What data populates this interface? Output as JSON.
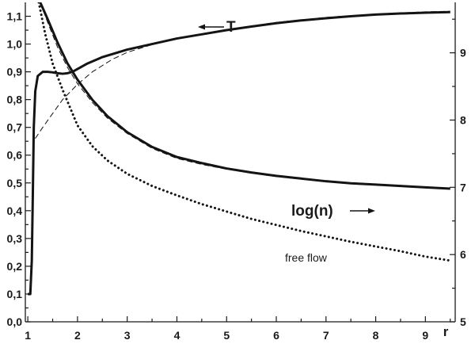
{
  "chart_data": {
    "type": "line",
    "x_axis": {
      "label": "r",
      "range": [
        0.95,
        9.6
      ],
      "ticks": [
        1,
        2,
        3,
        4,
        5,
        6,
        7,
        8,
        9
      ],
      "tick_labels": [
        "1",
        "2",
        "3",
        "4",
        "5",
        "6",
        "7",
        "8",
        "9"
      ]
    },
    "y_left_axis": {
      "range": [
        0.0,
        1.15
      ],
      "ticks": [
        0.0,
        0.1,
        0.2,
        0.3,
        0.4,
        0.5,
        0.6,
        0.7,
        0.8,
        0.9,
        1.0,
        1.1
      ],
      "tick_labels": [
        "0,0",
        "0,1",
        "0,2",
        "0,3",
        "0,4",
        "0,5",
        "0,6",
        "0,7",
        "0,8",
        "0,9",
        "1,0",
        "1,1"
      ]
    },
    "y_right_axis": {
      "range": [
        5.0,
        9.75
      ],
      "ticks": [
        5,
        6,
        7,
        8,
        9
      ],
      "tick_labels": [
        "5",
        "6",
        "7",
        "8",
        "9"
      ]
    },
    "annotations": [
      {
        "id": "T",
        "text": "T",
        "arrow": "left"
      },
      {
        "id": "logn",
        "text": "log(n)",
        "arrow": "right"
      },
      {
        "id": "freeflow",
        "text": "free flow"
      }
    ],
    "series": [
      {
        "id": "T_solid",
        "axis": "left",
        "style": "solid",
        "x": [
          1.0,
          1.05,
          1.08,
          1.1,
          1.12,
          1.15,
          1.2,
          1.3,
          1.4,
          1.5,
          1.6,
          1.7,
          1.8,
          1.9,
          2.0,
          2.2,
          2.5,
          3.0,
          3.5,
          4.0,
          4.5,
          5.0,
          5.5,
          6.0,
          6.5,
          7.0,
          7.5,
          8.0,
          8.5,
          9.0,
          9.5
        ],
        "y": [
          0.1,
          0.1,
          0.22,
          0.45,
          0.7,
          0.83,
          0.885,
          0.9,
          0.9,
          0.898,
          0.895,
          0.893,
          0.895,
          0.9,
          0.91,
          0.93,
          0.953,
          0.98,
          1.0,
          1.02,
          1.035,
          1.05,
          1.063,
          1.075,
          1.085,
          1.093,
          1.1,
          1.106,
          1.11,
          1.113,
          1.115
        ]
      },
      {
        "id": "T_dashed",
        "axis": "left",
        "style": "dashed",
        "x": [
          1.15,
          1.3,
          1.5,
          1.7,
          2.0,
          2.3,
          2.7,
          3.0,
          3.5,
          4.0,
          5.0,
          6.0,
          7.0,
          8.0,
          9.0,
          9.5
        ],
        "y": [
          0.66,
          0.7,
          0.75,
          0.8,
          0.855,
          0.9,
          0.945,
          0.97,
          0.998,
          1.02,
          1.052,
          1.078,
          1.096,
          1.108,
          1.116,
          1.118
        ]
      },
      {
        "id": "logn_solid",
        "axis": "right",
        "style": "solid",
        "x": [
          1.25,
          1.4,
          1.6,
          1.8,
          2.0,
          2.3,
          2.6,
          3.0,
          3.5,
          4.0,
          4.5,
          5.0,
          5.5,
          6.0,
          6.5,
          7.0,
          7.5,
          8.0,
          8.5,
          9.0,
          9.5
        ],
        "y": [
          9.75,
          9.5,
          9.15,
          8.84,
          8.6,
          8.3,
          8.06,
          7.82,
          7.6,
          7.45,
          7.36,
          7.28,
          7.22,
          7.17,
          7.13,
          7.09,
          7.06,
          7.04,
          7.02,
          7.0,
          6.98
        ]
      },
      {
        "id": "logn_dashed",
        "axis": "right",
        "style": "dashed",
        "x": [
          1.25,
          1.4,
          1.6,
          1.8,
          2.0,
          2.3,
          2.6,
          3.0,
          3.5,
          4.0,
          4.5,
          5.0,
          5.5,
          6.0,
          6.5,
          7.0,
          7.5,
          8.0,
          8.5,
          9.0,
          9.5
        ],
        "y": [
          9.75,
          9.45,
          9.08,
          8.78,
          8.54,
          8.26,
          8.03,
          7.8,
          7.58,
          7.43,
          7.34,
          7.27,
          7.21,
          7.16,
          7.12,
          7.09,
          7.06,
          7.04,
          7.02,
          7.0,
          6.99
        ]
      },
      {
        "id": "freeflow",
        "axis": "right",
        "style": "dotted",
        "x": [
          1.22,
          1.35,
          1.5,
          1.7,
          2.0,
          2.3,
          2.6,
          3.0,
          3.5,
          4.0,
          4.5,
          5.0,
          5.5,
          6.0,
          6.5,
          7.0,
          7.5,
          8.0,
          8.5,
          9.0,
          9.5
        ],
        "y": [
          9.75,
          9.28,
          8.84,
          8.45,
          7.92,
          7.61,
          7.4,
          7.2,
          7.02,
          6.88,
          6.75,
          6.64,
          6.53,
          6.44,
          6.35,
          6.27,
          6.19,
          6.12,
          6.05,
          5.97,
          5.91
        ]
      }
    ]
  }
}
